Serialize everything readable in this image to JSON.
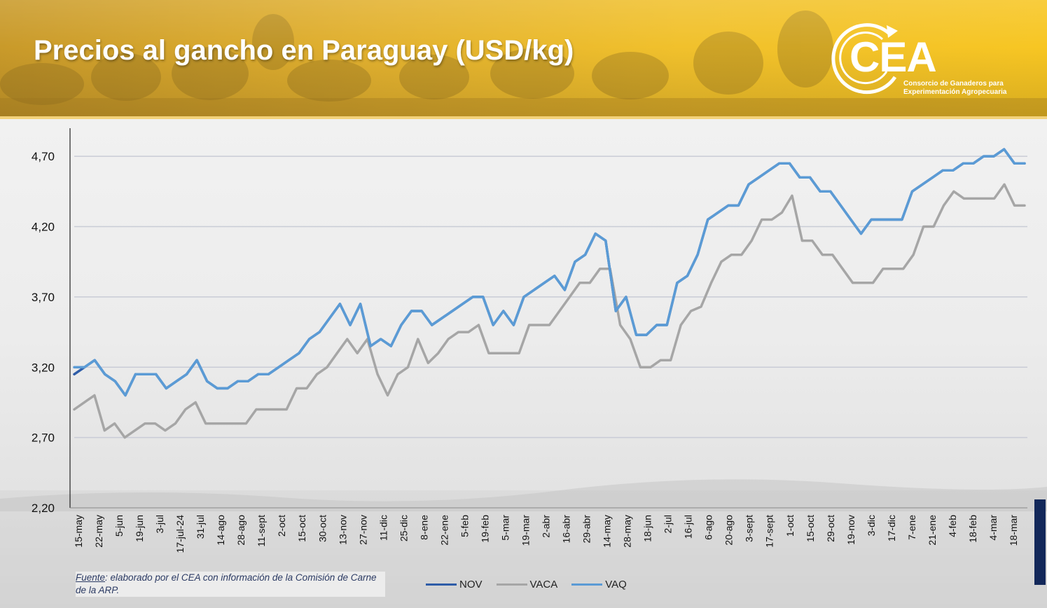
{
  "header": {
    "title": "Precios al gancho en Paraguay (USD/kg)",
    "logo_text": "CEA",
    "logo_sub_line1": "Consorcio de Ganaderos para",
    "logo_sub_line2": "Experimentación Agropecuaria",
    "accent_color": "#f2c12c"
  },
  "footer": {
    "source_label": "Fuente",
    "source_text": ": elaborado por el CEA con información de la Comisión de Carne de la ARP."
  },
  "chart_data": {
    "type": "line",
    "ylim": [
      2.2,
      4.9
    ],
    "yticks": [
      "2,20",
      "2,70",
      "3,20",
      "3,70",
      "4,20",
      "4,70"
    ],
    "ytick_values": [
      2.2,
      2.7,
      3.2,
      3.7,
      4.2,
      4.7
    ],
    "xtick_labels": [
      "15-may",
      "22-may",
      "5-jun",
      "19-jun",
      "3-jul",
      "17-jul-24",
      "31-jul",
      "14-ago",
      "28-ago",
      "11-sept",
      "2-oct",
      "15-oct",
      "30-oct",
      "13-nov",
      "27-nov",
      "11-dic",
      "25-dic",
      "8-ene",
      "22-ene",
      "5-feb",
      "19-feb",
      "5-mar",
      "19-mar",
      "2-abr",
      "16-abr",
      "29-abr",
      "14-may",
      "28-may",
      "18-jun",
      "2-jul",
      "16-jul",
      "6-ago",
      "20-ago",
      "3-sept",
      "17-sept",
      "1-oct",
      "15-oct",
      "29-oct",
      "19-nov",
      "3-dic",
      "17-dic",
      "7-ene",
      "21-ene",
      "4-feb",
      "18-feb",
      "4-mar",
      "18-mar"
    ],
    "grid": true,
    "legend_position": "bottom",
    "series": [
      {
        "name": "NOV",
        "color": "#2f5da8",
        "values": [
          3.15,
          3.2,
          3.25,
          3.15,
          3.1,
          3.0,
          3.15,
          3.15,
          3.15,
          3.05,
          3.1,
          3.15,
          3.25,
          3.1,
          3.05,
          3.05,
          3.1,
          3.1,
          3.15,
          3.15,
          3.2,
          3.25,
          3.3,
          3.4,
          3.45,
          3.55,
          3.65,
          3.5,
          3.65,
          3.35,
          3.4,
          3.35,
          3.5,
          3.6,
          3.6,
          3.5,
          3.55,
          3.6,
          3.65,
          3.7,
          3.7,
          3.5,
          3.6,
          3.5,
          3.7,
          3.75,
          3.8,
          3.85,
          3.75,
          3.95,
          4.0,
          4.15,
          4.1,
          3.6,
          3.7,
          3.43,
          3.43,
          3.5,
          3.5,
          3.8,
          3.85,
          4.0,
          4.25,
          4.3,
          4.35,
          4.35,
          4.5,
          4.55,
          4.6,
          4.65,
          4.65,
          4.55,
          4.55,
          4.45,
          4.45,
          4.35,
          4.25,
          4.15,
          4.25,
          4.25,
          4.25,
          4.25,
          4.45,
          4.5,
          4.55,
          4.6,
          4.6,
          4.65,
          4.65,
          4.7,
          4.7,
          4.75,
          4.65,
          4.65
        ]
      },
      {
        "name": "VACA",
        "color": "#a6a6a6",
        "values": [
          2.9,
          2.95,
          3.0,
          2.75,
          2.8,
          2.7,
          2.75,
          2.8,
          2.8,
          2.75,
          2.8,
          2.9,
          2.95,
          2.8,
          2.8,
          2.8,
          2.8,
          2.8,
          2.9,
          2.9,
          2.9,
          2.9,
          3.05,
          3.05,
          3.15,
          3.2,
          3.3,
          3.4,
          3.3,
          3.4,
          3.15,
          3.0,
          3.15,
          3.2,
          3.4,
          3.23,
          3.3,
          3.4,
          3.45,
          3.45,
          3.5,
          3.3,
          3.3,
          3.3,
          3.3,
          3.5,
          3.5,
          3.5,
          3.6,
          3.7,
          3.8,
          3.8,
          3.9,
          3.9,
          3.5,
          3.4,
          3.2,
          3.2,
          3.25,
          3.25,
          3.5,
          3.6,
          3.63,
          3.8,
          3.95,
          4.0,
          4.0,
          4.1,
          4.25,
          4.25,
          4.3,
          4.42,
          4.1,
          4.1,
          4.0,
          4.0,
          3.9,
          3.8,
          3.8,
          3.8,
          3.9,
          3.9,
          3.9,
          4.0,
          4.2,
          4.2,
          4.35,
          4.45,
          4.4,
          4.4,
          4.4,
          4.4,
          4.5,
          4.35,
          4.35
        ]
      },
      {
        "name": "VAQ",
        "color": "#5b9bd5",
        "values": [
          3.2,
          3.2,
          3.25,
          3.15,
          3.1,
          3.0,
          3.15,
          3.15,
          3.15,
          3.05,
          3.1,
          3.15,
          3.25,
          3.1,
          3.05,
          3.05,
          3.1,
          3.1,
          3.15,
          3.15,
          3.2,
          3.25,
          3.3,
          3.4,
          3.45,
          3.55,
          3.65,
          3.5,
          3.65,
          3.35,
          3.4,
          3.35,
          3.5,
          3.6,
          3.6,
          3.5,
          3.55,
          3.6,
          3.65,
          3.7,
          3.7,
          3.5,
          3.6,
          3.5,
          3.7,
          3.75,
          3.8,
          3.85,
          3.75,
          3.95,
          4.0,
          4.15,
          4.1,
          3.6,
          3.7,
          3.43,
          3.43,
          3.5,
          3.5,
          3.8,
          3.85,
          4.0,
          4.25,
          4.3,
          4.35,
          4.35,
          4.5,
          4.55,
          4.6,
          4.65,
          4.65,
          4.55,
          4.55,
          4.45,
          4.45,
          4.35,
          4.25,
          4.15,
          4.25,
          4.25,
          4.25,
          4.25,
          4.45,
          4.5,
          4.55,
          4.6,
          4.6,
          4.65,
          4.65,
          4.7,
          4.7,
          4.75,
          4.65,
          4.65
        ]
      }
    ]
  }
}
